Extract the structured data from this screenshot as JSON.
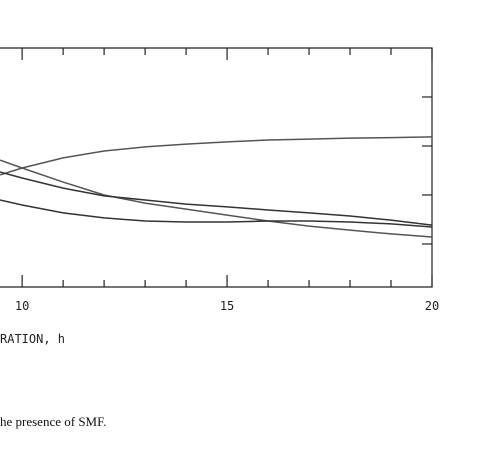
{
  "chart_data": {
    "type": "line",
    "x_label": "RATION, h",
    "caption": "he presence of SMF.",
    "x": [
      9.46,
      10,
      11,
      12,
      13,
      14,
      15,
      16,
      17,
      18,
      19,
      20
    ],
    "series": [
      {
        "color": "#555555",
        "values": [
          0.469,
          0.498,
          0.54,
          0.569,
          0.586,
          0.598,
          0.607,
          0.615,
          0.619,
          0.623,
          0.625,
          0.628
        ]
      },
      {
        "color": "#555555",
        "values": [
          0.531,
          0.498,
          0.439,
          0.385,
          0.351,
          0.326,
          0.301,
          0.276,
          0.255,
          0.238,
          0.222,
          0.209
        ]
      },
      {
        "color": "#333333",
        "values": [
          0.481,
          0.456,
          0.414,
          0.381,
          0.364,
          0.347,
          0.335,
          0.322,
          0.31,
          0.297,
          0.28,
          0.259
        ]
      },
      {
        "color": "#333333",
        "values": [
          0.364,
          0.343,
          0.31,
          0.289,
          0.276,
          0.272,
          0.272,
          0.276,
          0.276,
          0.272,
          0.264,
          0.251
        ]
      }
    ],
    "xlim": [
      9.46,
      20
    ],
    "xticks": [
      10,
      15,
      20
    ],
    "xminorticks": [
      11,
      12,
      13,
      14,
      16,
      17,
      18,
      19
    ],
    "ylim": [
      0,
      1
    ],
    "yticks": [
      0.18,
      0.385,
      0.59,
      0.795
    ]
  }
}
